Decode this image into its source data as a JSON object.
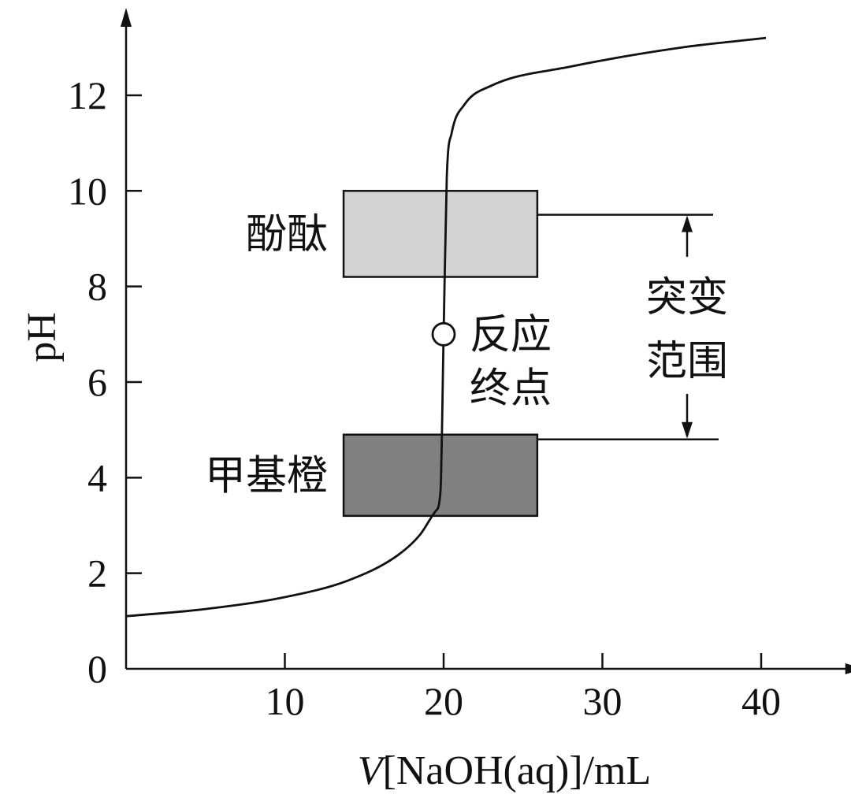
{
  "chart_data": {
    "type": "line",
    "xlabel_var": "V",
    "xlabel_rest": "[NaOH(aq)]/mL",
    "ylabel": "pH",
    "xlim": [
      0,
      45
    ],
    "ylim": [
      0,
      13.5
    ],
    "x_ticks": [
      10,
      20,
      30,
      40
    ],
    "y_ticks": [
      0,
      2,
      4,
      6,
      8,
      10,
      12
    ],
    "curve": {
      "x": [
        0,
        5,
        10,
        14,
        17,
        18.5,
        19.5,
        19.8,
        20,
        20.2,
        20.5,
        21.3,
        23,
        28,
        35,
        40.3
      ],
      "y": [
        1.1,
        1.25,
        1.5,
        1.85,
        2.35,
        2.8,
        3.3,
        3.7,
        7.0,
        10.3,
        11.2,
        11.8,
        12.2,
        12.6,
        13.0,
        13.2
      ]
    },
    "equivalence_point": {
      "x": 20,
      "y": 7,
      "label_line1": "反应",
      "label_line2": "终点"
    },
    "indicators": [
      {
        "name": "酚酞",
        "x_range": [
          13.7,
          25.9
        ],
        "ph_range": [
          8.2,
          10.0
        ],
        "color": "#d3d3d3"
      },
      {
        "name": "甲基橙",
        "x_range": [
          13.7,
          25.9
        ],
        "ph_range": [
          3.2,
          4.9
        ],
        "color": "#808080"
      }
    ],
    "jump_range": {
      "top_ph": 9.5,
      "bottom_ph": 4.8,
      "line1": "突变",
      "line2": "范围"
    }
  }
}
